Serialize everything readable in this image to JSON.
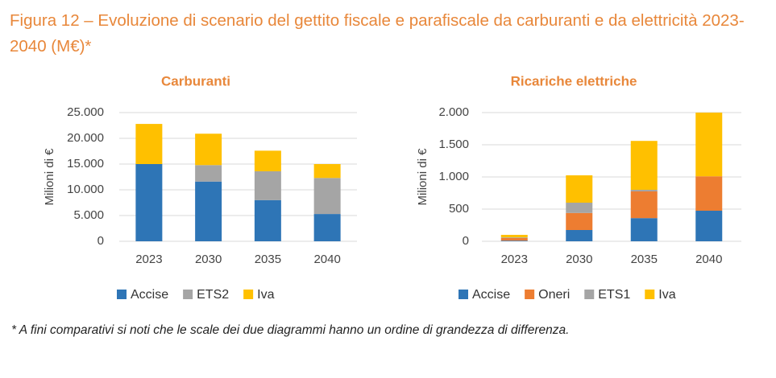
{
  "title": "Figura 12 – Evoluzione di scenario del gettito fiscale e parafiscale da carburanti e da elettricità 2023-2040 (M€)*",
  "footnote": "* A fini comparativi si noti che le scale dei due diagrammi hanno un ordine di grandezza di differenza.",
  "chart_data": [
    {
      "type": "stacked_bar",
      "title": "Carburanti",
      "y_label": "Milioni di €",
      "categories": [
        "2023",
        "2030",
        "2035",
        "2040"
      ],
      "series": [
        {
          "name": "Accise",
          "color": "#2e75b6",
          "values": [
            15000,
            11600,
            8000,
            5300
          ]
        },
        {
          "name": "ETS2",
          "color": "#a5a5a5",
          "values": [
            0,
            3200,
            5600,
            7000
          ]
        },
        {
          "name": "Iva",
          "color": "#ffc000",
          "values": [
            7800,
            6100,
            4000,
            2700
          ]
        }
      ],
      "ylim": [
        0,
        25000
      ],
      "yticks": [
        0,
        {
          "value": 5000,
          "label": "5.000"
        },
        {
          "value": 10000,
          "label": "10.000"
        },
        {
          "value": 15000,
          "label": "15.000"
        },
        {
          "value": 20000,
          "label": "20.000"
        },
        {
          "value": 25000,
          "label": "25.000"
        }
      ],
      "grid": true,
      "legend": "bottom"
    },
    {
      "type": "stacked_bar",
      "title": "Ricariche elettriche",
      "y_label": "Milioni di €",
      "categories": [
        "2023",
        "2030",
        "2035",
        "2040"
      ],
      "series": [
        {
          "name": "Accise",
          "color": "#2e75b6",
          "values": [
            10,
            175,
            360,
            475
          ]
        },
        {
          "name": "Oneri",
          "color": "#ed7d31",
          "values": [
            40,
            265,
            415,
            535
          ]
        },
        {
          "name": "ETS1",
          "color": "#a5a5a5",
          "values": [
            10,
            160,
            25,
            0
          ]
        },
        {
          "name": "Iva",
          "color": "#ffc000",
          "values": [
            40,
            425,
            760,
            990
          ]
        }
      ],
      "ylim": [
        0,
        2000
      ],
      "yticks": [
        0,
        500,
        {
          "value": 1000,
          "label": "1.000"
        },
        {
          "value": 1500,
          "label": "1.500"
        },
        {
          "value": 2000,
          "label": "2.000"
        }
      ],
      "grid": true,
      "legend": "bottom"
    }
  ]
}
